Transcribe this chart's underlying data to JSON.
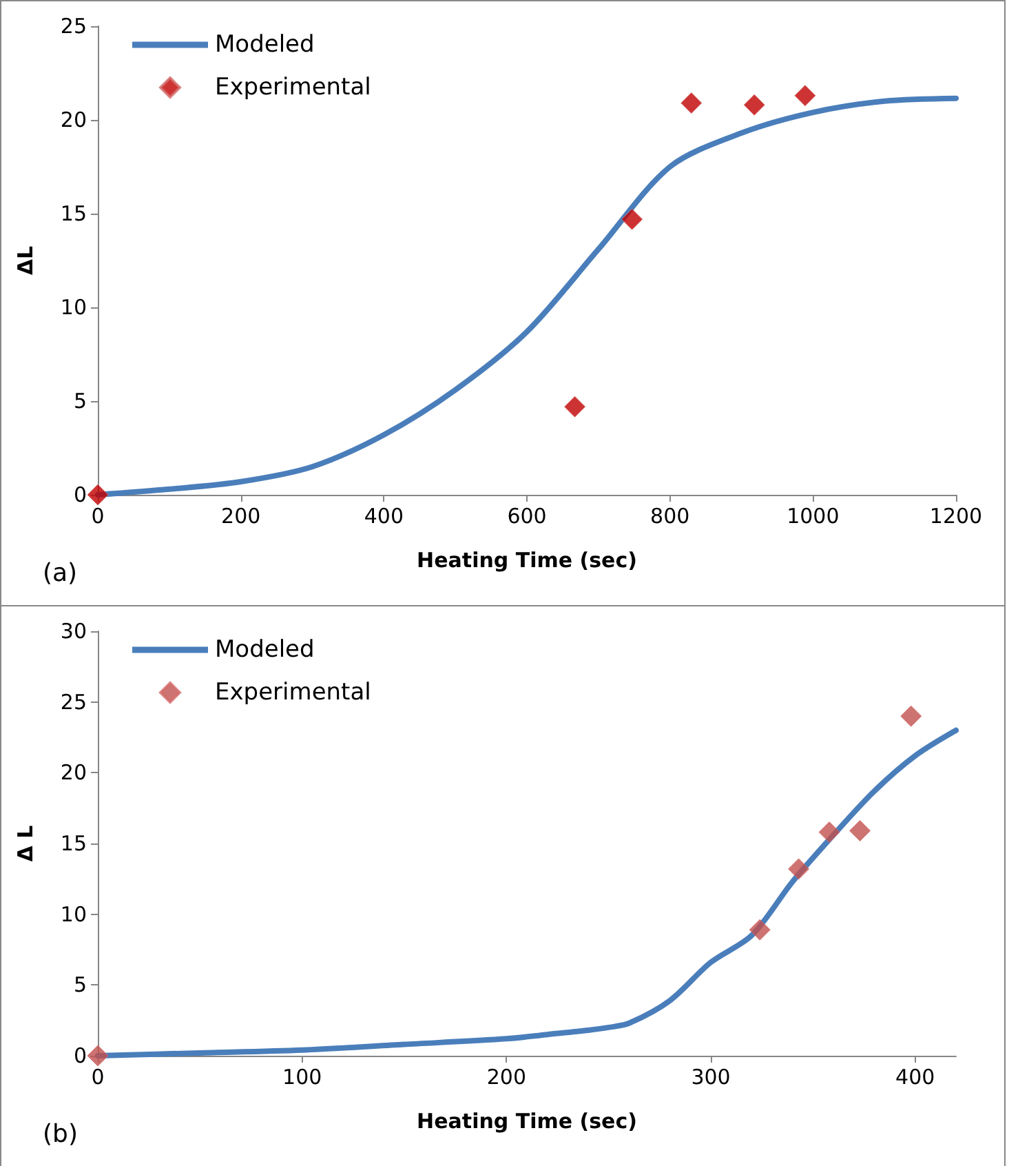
{
  "chart_data": [
    {
      "type": "scatter",
      "xlabel": "Heating Time (sec)",
      "ylabel": "ΔL",
      "annotations": [
        "(a)"
      ],
      "xlim": [
        0,
        1200
      ],
      "xticks": [
        0,
        200,
        400,
        600,
        800,
        1000,
        1200
      ],
      "ylim": [
        0,
        25
      ],
      "yticks": [
        0,
        5,
        10,
        15,
        20,
        25
      ],
      "grid": false,
      "legend": "top left",
      "series": [
        {
          "name": "Modeled",
          "type": "line",
          "marker": "none",
          "color": "#4a7ebb",
          "x": [
            0,
            100,
            200,
            300,
            400,
            500,
            600,
            700,
            800,
            900,
            1000,
            1100,
            1200
          ],
          "values": [
            0,
            0.3,
            0.7,
            1.5,
            3.2,
            5.6,
            8.7,
            13.1,
            17.5,
            19.3,
            20.4,
            21.0,
            21.15
          ]
        },
        {
          "name": "Experimental",
          "marker": "diamond",
          "color": "#c00000",
          "x": [
            0,
            667,
            747,
            830,
            918,
            989
          ],
          "values": [
            0,
            4.7,
            14.7,
            20.9,
            20.8,
            21.3
          ]
        }
      ]
    },
    {
      "type": "scatter",
      "xlabel": "Heating Time (sec)",
      "ylabel": "Δ L",
      "annotations": [
        "(b)"
      ],
      "xlim": [
        0,
        420
      ],
      "xticks": [
        0,
        100,
        200,
        300,
        400
      ],
      "ylim": [
        0,
        30
      ],
      "yticks": [
        0,
        5,
        10,
        15,
        20,
        25,
        30
      ],
      "grid": false,
      "legend": "top left",
      "series": [
        {
          "name": "Modeled",
          "type": "line",
          "marker": "none",
          "color": "#4a7ebb",
          "x": [
            0,
            50,
            100,
            150,
            200,
            220,
            240,
            250,
            260,
            280,
            300,
            320,
            340,
            360,
            380,
            400,
            420
          ],
          "values": [
            0,
            0.2,
            0.4,
            0.8,
            1.2,
            1.5,
            1.8,
            2.0,
            2.3,
            3.9,
            6.6,
            8.5,
            12.3,
            15.6,
            18.7,
            21.2,
            23.0
          ]
        },
        {
          "name": "Experimental",
          "marker": "diamond",
          "color": "#c0504d",
          "x": [
            0,
            324,
            343,
            358,
            373,
            398
          ],
          "values": [
            0,
            8.9,
            13.2,
            15.8,
            15.9,
            24.0
          ]
        }
      ]
    }
  ]
}
